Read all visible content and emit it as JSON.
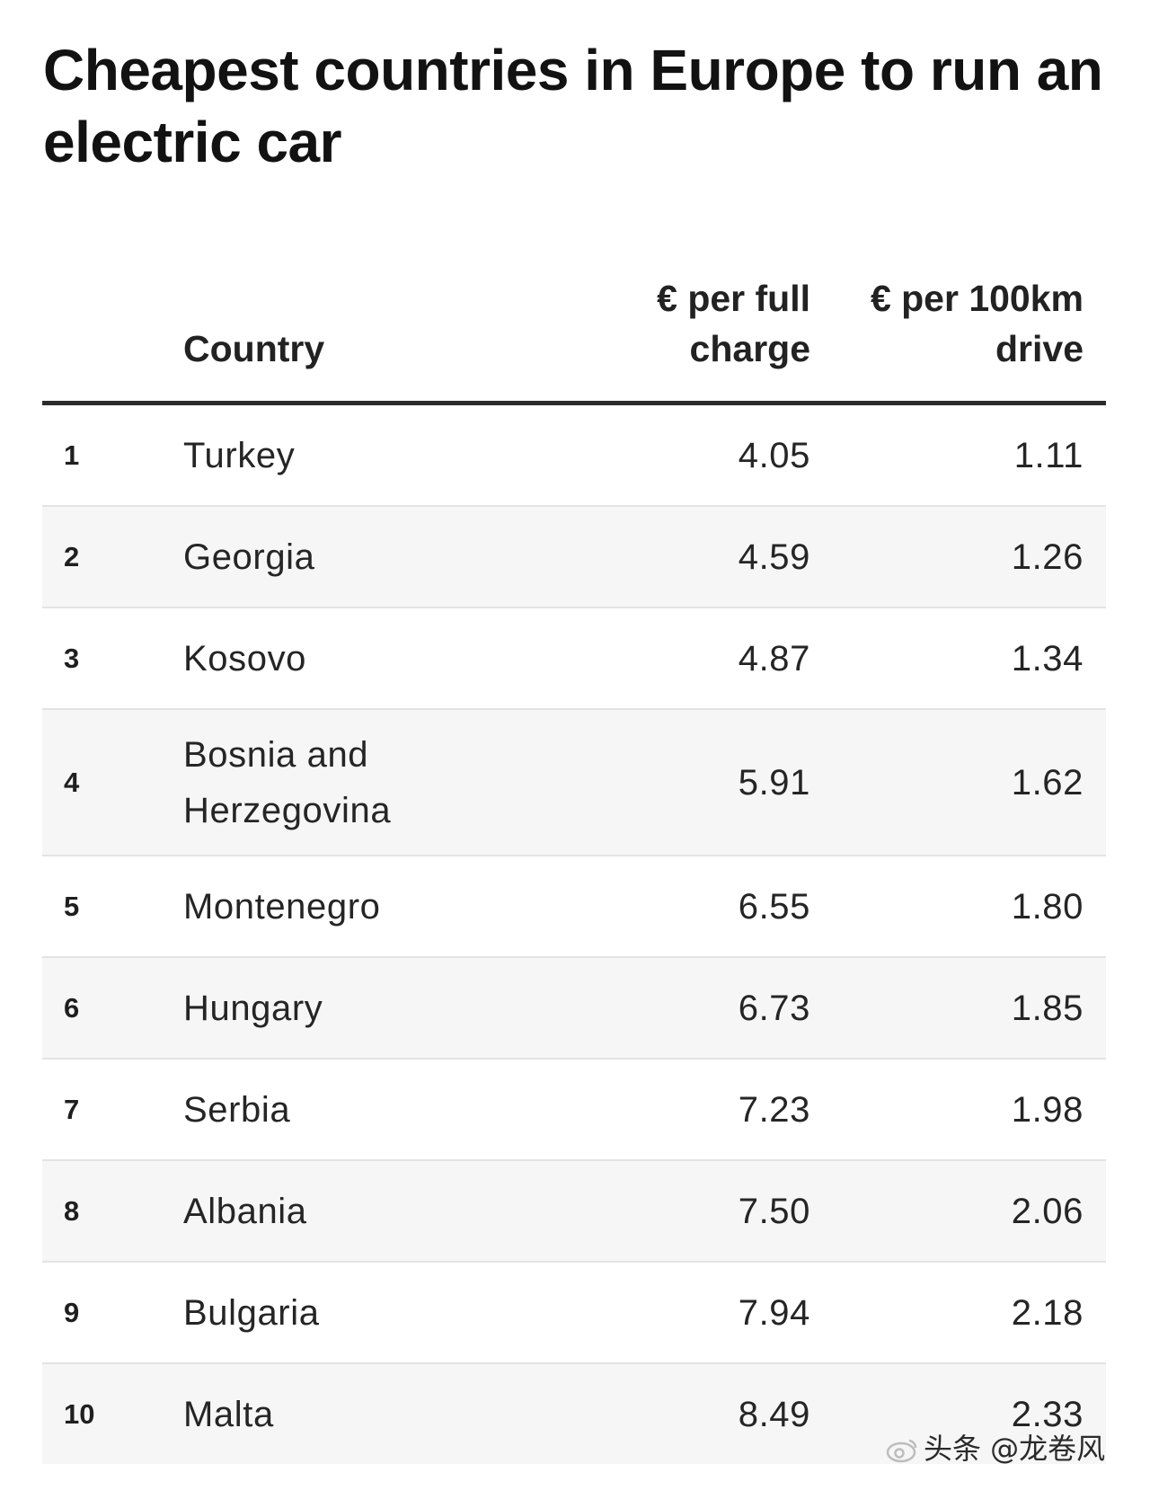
{
  "chart_data": {
    "type": "table",
    "title": "Cheapest countries in Europe to run an electric car",
    "columns": {
      "rank": "",
      "country": "Country",
      "charge": "€ per full charge",
      "drive": "€ per 100km drive"
    },
    "rows": [
      {
        "rank": "1",
        "country": "Turkey",
        "charge": "4.05",
        "drive": "1.11"
      },
      {
        "rank": "2",
        "country": "Georgia",
        "charge": "4.59",
        "drive": "1.26"
      },
      {
        "rank": "3",
        "country": "Kosovo",
        "charge": "4.87",
        "drive": "1.34"
      },
      {
        "rank": "4",
        "country": "Bosnia and Herzegovina",
        "charge": "5.91",
        "drive": "1.62"
      },
      {
        "rank": "5",
        "country": "Montenegro",
        "charge": "6.55",
        "drive": "1.80"
      },
      {
        "rank": "6",
        "country": "Hungary",
        "charge": "6.73",
        "drive": "1.85"
      },
      {
        "rank": "7",
        "country": "Serbia",
        "charge": "7.23",
        "drive": "1.98"
      },
      {
        "rank": "8",
        "country": "Albania",
        "charge": "7.50",
        "drive": "2.06"
      },
      {
        "rank": "9",
        "country": "Bulgaria",
        "charge": "7.94",
        "drive": "2.18"
      },
      {
        "rank": "10",
        "country": "Malta",
        "charge": "8.49",
        "drive": "2.33"
      }
    ]
  },
  "watermark": {
    "text": "头条 @龙卷风",
    "icon": "weibo-eye-icon"
  }
}
